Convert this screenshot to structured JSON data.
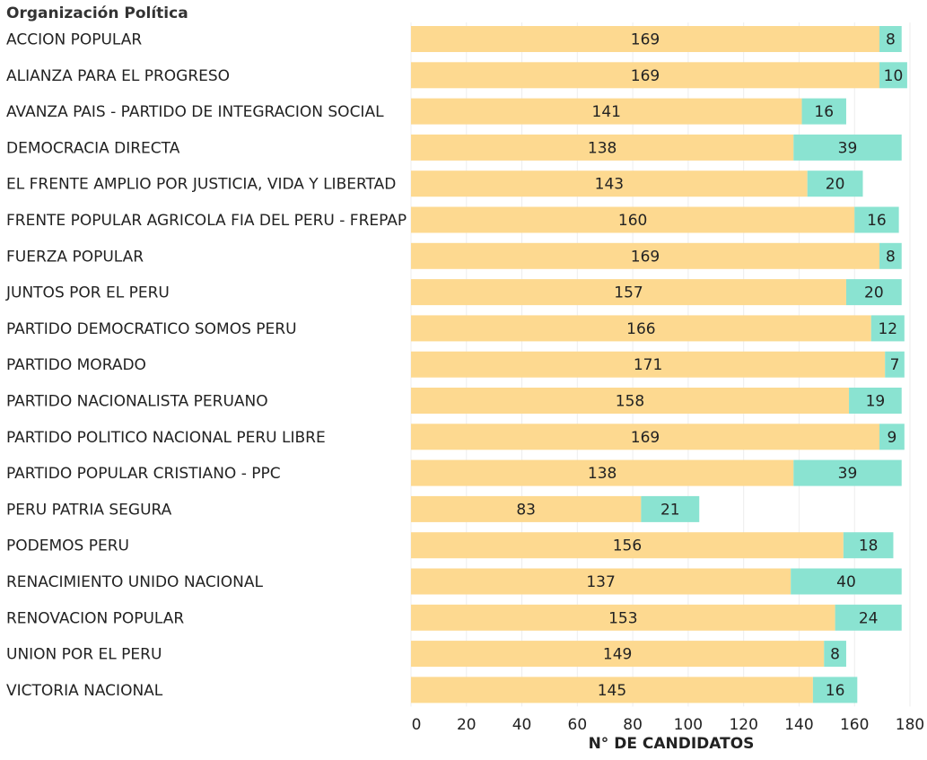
{
  "chart_data": {
    "type": "bar",
    "orientation": "horizontal",
    "stacked": true,
    "y_title": "Organización Política",
    "xlabel": "N° DE CANDIDATOS",
    "xlim": [
      0,
      180
    ],
    "x_ticks": [
      "0",
      "20",
      "40",
      "60",
      "80",
      "100",
      "120",
      "140",
      "160",
      "180"
    ],
    "grid": true,
    "legend": "none",
    "categories": [
      "ACCION POPULAR",
      "ALIANZA PARA EL PROGRESO",
      "AVANZA PAIS - PARTIDO DE INTEGRACION SOCIAL",
      "DEMOCRACIA DIRECTA",
      "EL FRENTE AMPLIO POR JUSTICIA, VIDA Y LIBERTAD",
      "FRENTE POPULAR AGRICOLA FIA DEL PERU - FREPAP",
      "FUERZA POPULAR",
      "JUNTOS POR EL PERU",
      "PARTIDO DEMOCRATICO SOMOS PERU",
      "PARTIDO MORADO",
      "PARTIDO NACIONALISTA PERUANO",
      "PARTIDO POLITICO NACIONAL PERU LIBRE",
      "PARTIDO POPULAR CRISTIANO - PPC",
      "PERU PATRIA SEGURA",
      "PODEMOS PERU",
      "RENACIMIENTO UNIDO NACIONAL",
      "RENOVACION POPULAR",
      "UNION POR EL PERU",
      "VICTORIA NACIONAL"
    ],
    "series": [
      {
        "color": "#fdd990",
        "values": [
          169,
          169,
          141,
          138,
          143,
          160,
          169,
          157,
          166,
          171,
          158,
          169,
          138,
          83,
          156,
          137,
          153,
          149,
          145
        ]
      },
      {
        "color": "#8ae3d1",
        "values": [
          8,
          10,
          16,
          39,
          20,
          16,
          8,
          20,
          12,
          7,
          19,
          9,
          39,
          21,
          18,
          40,
          24,
          8,
          16
        ]
      }
    ]
  }
}
